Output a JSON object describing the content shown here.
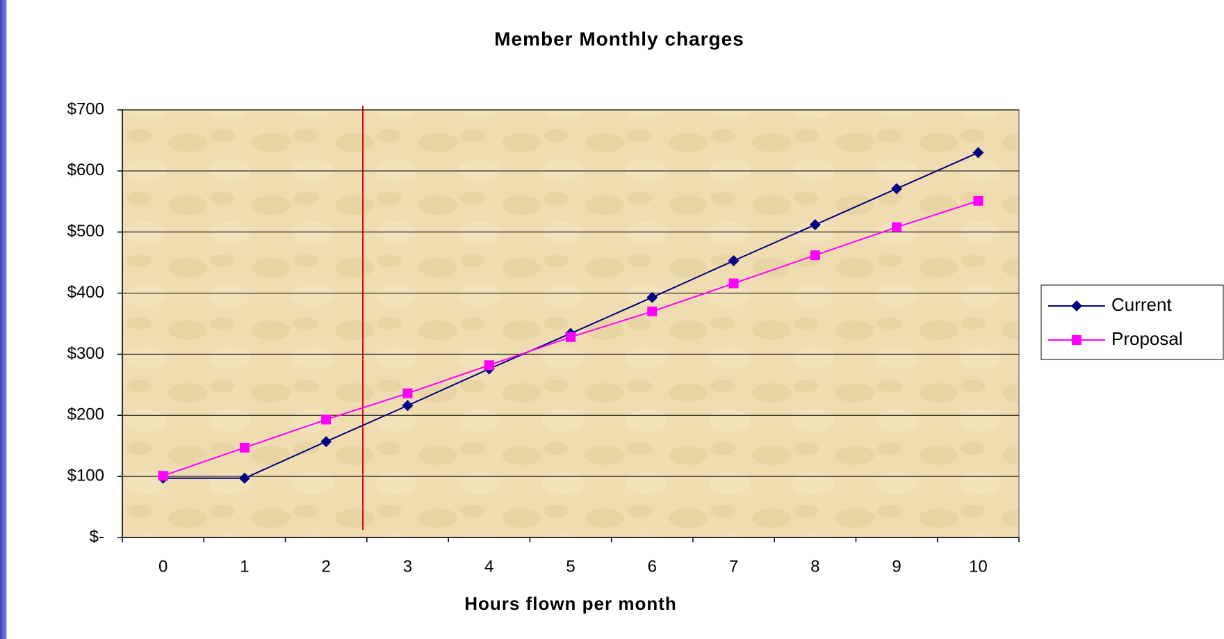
{
  "chart_data": {
    "type": "line",
    "title": "Member Monthly charges",
    "x_label": "Hours flown per month",
    "categories": [
      "0",
      "1",
      "2",
      "3",
      "4",
      "5",
      "6",
      "7",
      "8",
      "9",
      "10"
    ],
    "series": [
      {
        "name": "Current",
        "color": "#000080",
        "marker": "diamond",
        "values": [
          97,
          97,
          157,
          216,
          276,
          334,
          393,
          453,
          512,
          571,
          630
        ]
      },
      {
        "name": "Proposal",
        "color": "#ff00ff",
        "marker": "square",
        "values": [
          101,
          147,
          193,
          236,
          282,
          328,
          370,
          416,
          462,
          508,
          551
        ]
      }
    ],
    "ylim": [
      0,
      700
    ],
    "yticks": [
      {
        "value": 0,
        "label": "$-"
      },
      {
        "value": 100,
        "label": "$100"
      },
      {
        "value": 200,
        "label": "$200"
      },
      {
        "value": 300,
        "label": "$300"
      },
      {
        "value": 400,
        "label": "$400"
      },
      {
        "value": 500,
        "label": "$500"
      },
      {
        "value": 600,
        "label": "$600"
      },
      {
        "value": 700,
        "label": "$700"
      }
    ],
    "grid": true,
    "legend": "right"
  }
}
